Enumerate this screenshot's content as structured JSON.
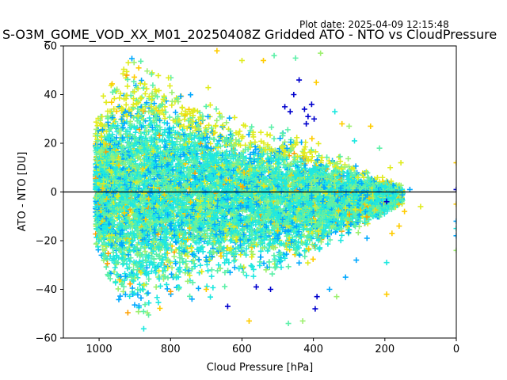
{
  "figure": {
    "plot_date_text": "Plot date: 2025-04-09 12:15:48"
  },
  "colors": {
    "zero_line": "#000000",
    "palette": [
      "#0000cd",
      "#00a8ff",
      "#1ee8e0",
      "#5cf0a8",
      "#9ef070",
      "#e0ec20",
      "#ffcc00",
      "#ffa000"
    ]
  },
  "chart_data": {
    "type": "scatter",
    "marker": "plus",
    "title": "S-O3M_GOME_VOD_XX_M01_20250408Z Gridded ATO - NTO vs CloudPressure",
    "xlabel": "Cloud Pressure [hPa]",
    "ylabel": "ATO - NTO [DU]",
    "xlim": [
      1100,
      0
    ],
    "ylim": [
      -60,
      60
    ],
    "x_ticks": [
      1000,
      800,
      600,
      400,
      200,
      0
    ],
    "y_ticks": [
      -60,
      -40,
      -20,
      0,
      20,
      40,
      60
    ],
    "horizontal_line_y": 0,
    "grid": false,
    "legend": "none",
    "envelope": {
      "pressure_hpa": [
        1000,
        950,
        900,
        850,
        800,
        700,
        600,
        500,
        400,
        350,
        300,
        250,
        200,
        150
      ],
      "upper_du": [
        35,
        55,
        57,
        56,
        50,
        42,
        32,
        28,
        22,
        18,
        14,
        10,
        6,
        3
      ],
      "lower_du": [
        -30,
        -55,
        -58,
        -55,
        -50,
        -42,
        -37,
        -35,
        -30,
        -25,
        -20,
        -15,
        -10,
        -6
      ]
    },
    "sparse_points": [
      {
        "x": 480,
        "y": 35,
        "c": 0
      },
      {
        "x": 465,
        "y": 33,
        "c": 0
      },
      {
        "x": 455,
        "y": 40,
        "c": 0
      },
      {
        "x": 440,
        "y": 46,
        "c": 0
      },
      {
        "x": 425,
        "y": 34,
        "c": 0
      },
      {
        "x": 415,
        "y": 31,
        "c": 0
      },
      {
        "x": 405,
        "y": 36,
        "c": 0
      },
      {
        "x": 398,
        "y": 30,
        "c": 0
      },
      {
        "x": 420,
        "y": 28,
        "c": 0
      },
      {
        "x": 392,
        "y": 45,
        "c": 6
      },
      {
        "x": 380,
        "y": 57,
        "c": 4
      },
      {
        "x": 340,
        "y": 33,
        "c": 2
      },
      {
        "x": 320,
        "y": 28,
        "c": 6
      },
      {
        "x": 300,
        "y": 27,
        "c": 4
      },
      {
        "x": 285,
        "y": 21,
        "c": 2
      },
      {
        "x": 240,
        "y": 27,
        "c": 6
      },
      {
        "x": 215,
        "y": 18,
        "c": 3
      },
      {
        "x": 185,
        "y": 10,
        "c": 5
      },
      {
        "x": 155,
        "y": 12,
        "c": 5
      },
      {
        "x": 130,
        "y": 1,
        "c": 1
      },
      {
        "x": 100,
        "y": -6,
        "c": 5
      },
      {
        "x": 145,
        "y": -8,
        "c": 6
      },
      {
        "x": 160,
        "y": -14,
        "c": 6
      },
      {
        "x": 180,
        "y": -17,
        "c": 6
      },
      {
        "x": 195,
        "y": -4,
        "c": 0
      },
      {
        "x": 195,
        "y": -42,
        "c": 6
      },
      {
        "x": 195,
        "y": -29,
        "c": 2
      },
      {
        "x": 250,
        "y": -19,
        "c": 1
      },
      {
        "x": 280,
        "y": -28,
        "c": 1
      },
      {
        "x": 310,
        "y": -35,
        "c": 1
      },
      {
        "x": 335,
        "y": -43,
        "c": 4
      },
      {
        "x": 355,
        "y": -40,
        "c": 1
      },
      {
        "x": 390,
        "y": -43,
        "c": 0
      },
      {
        "x": 395,
        "y": -48,
        "c": 0
      },
      {
        "x": 430,
        "y": -53,
        "c": 4
      },
      {
        "x": 470,
        "y": -54,
        "c": 3
      },
      {
        "x": 520,
        "y": -40,
        "c": 0
      },
      {
        "x": 560,
        "y": -39,
        "c": 0
      },
      {
        "x": 580,
        "y": -53,
        "c": 6
      },
      {
        "x": 640,
        "y": -47,
        "c": 0
      },
      {
        "x": 700,
        "y": -40,
        "c": 6
      },
      {
        "x": 740,
        "y": -44,
        "c": 1
      },
      {
        "x": 670,
        "y": 58,
        "c": 6
      },
      {
        "x": 600,
        "y": 54,
        "c": 5
      },
      {
        "x": 540,
        "y": 54,
        "c": 6
      },
      {
        "x": 510,
        "y": 56,
        "c": 3
      },
      {
        "x": 450,
        "y": 55,
        "c": 3
      },
      {
        "x": 0,
        "y": 12,
        "c": 6
      },
      {
        "x": 0,
        "y": 1,
        "c": 0
      },
      {
        "x": 0,
        "y": -5,
        "c": 6
      },
      {
        "x": 0,
        "y": -12,
        "c": 1
      },
      {
        "x": 0,
        "y": -15,
        "c": 2
      },
      {
        "x": 0,
        "y": -18,
        "c": 1
      },
      {
        "x": 0,
        "y": -24,
        "c": 4
      }
    ]
  }
}
